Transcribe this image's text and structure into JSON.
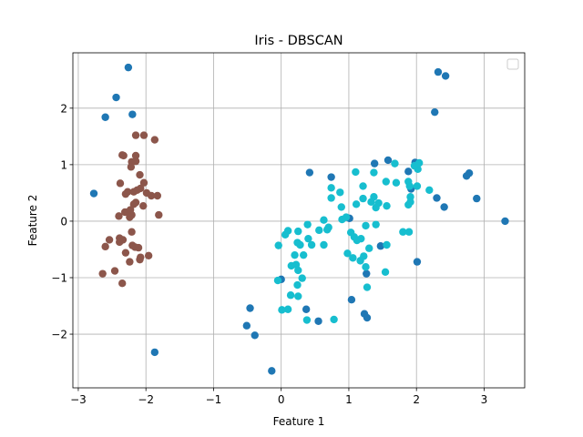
{
  "chart_data": {
    "type": "scatter",
    "title": "Iris - DBSCAN",
    "xlabel": "Feature 1",
    "ylabel": "Feature 2",
    "xlim": [
      -3.08,
      3.6
    ],
    "ylim": [
      -2.95,
      2.98
    ],
    "xticks": [
      -3,
      -2,
      -1,
      0,
      1,
      2,
      3
    ],
    "yticks": [
      -2,
      -1,
      0,
      1,
      2
    ],
    "xtick_labels": [
      "−3",
      "−2",
      "−1",
      "0",
      "1",
      "2",
      "3"
    ],
    "ytick_labels": [
      "−2",
      "−1",
      "0",
      "1",
      "2"
    ],
    "grid": true,
    "legend_placement": "top-right",
    "series": [
      {
        "color": "#1f77b4",
        "points": [
          [
            -2.26,
            2.72
          ],
          [
            -2.44,
            2.19
          ],
          [
            -2.6,
            1.84
          ],
          [
            -2.2,
            1.89
          ],
          [
            -2.77,
            0.49
          ],
          [
            -1.87,
            -2.32
          ],
          [
            2.32,
            2.64
          ],
          [
            2.43,
            2.57
          ],
          [
            2.27,
            1.93
          ],
          [
            1.58,
            1.08
          ],
          [
            1.38,
            1.02
          ],
          [
            1.88,
            0.88
          ],
          [
            0.42,
            0.86
          ],
          [
            0.74,
            0.78
          ],
          [
            1.98,
            1.04
          ],
          [
            1.92,
            0.57
          ],
          [
            2.78,
            0.85
          ],
          [
            2.74,
            0.8
          ],
          [
            2.89,
            0.4
          ],
          [
            2.3,
            0.41
          ],
          [
            2.41,
            0.25
          ],
          [
            3.31,
            0.0
          ],
          [
            1.47,
            -0.44
          ],
          [
            2.01,
            -0.72
          ],
          [
            1.26,
            -0.93
          ],
          [
            1.04,
            -1.39
          ],
          [
            1.23,
            -1.64
          ],
          [
            1.27,
            -1.71
          ],
          [
            0.37,
            -1.56
          ],
          [
            0.55,
            -1.77
          ],
          [
            -0.46,
            -1.54
          ],
          [
            -0.51,
            -1.85
          ],
          [
            -0.39,
            -2.02
          ],
          [
            -0.14,
            -2.65
          ],
          [
            0.0,
            -1.03
          ],
          [
            1.01,
            0.05
          ]
        ]
      },
      {
        "color": "#8c564b",
        "points": [
          [
            -2.15,
            1.52
          ],
          [
            -2.03,
            1.52
          ],
          [
            -1.87,
            1.44
          ],
          [
            -2.35,
            1.17
          ],
          [
            -2.33,
            1.16
          ],
          [
            -2.15,
            1.16
          ],
          [
            -2.21,
            1.05
          ],
          [
            -2.15,
            1.06
          ],
          [
            -2.22,
            0.96
          ],
          [
            -2.09,
            0.82
          ],
          [
            -2.03,
            0.68
          ],
          [
            -2.38,
            0.67
          ],
          [
            -2.08,
            0.58
          ],
          [
            -2.13,
            0.55
          ],
          [
            -2.18,
            0.52
          ],
          [
            -2.27,
            0.52
          ],
          [
            -2.3,
            0.48
          ],
          [
            -1.99,
            0.5
          ],
          [
            -1.92,
            0.45
          ],
          [
            -1.83,
            0.45
          ],
          [
            -2.15,
            0.33
          ],
          [
            -2.18,
            0.3
          ],
          [
            -2.04,
            0.27
          ],
          [
            -2.31,
            0.16
          ],
          [
            -2.23,
            0.2
          ],
          [
            -2.21,
            0.11
          ],
          [
            -1.81,
            0.11
          ],
          [
            -2.4,
            0.09
          ],
          [
            -2.24,
            0.07
          ],
          [
            -2.21,
            -0.19
          ],
          [
            -2.39,
            -0.3
          ],
          [
            -2.34,
            -0.33
          ],
          [
            -2.39,
            -0.37
          ],
          [
            -2.54,
            -0.33
          ],
          [
            -2.2,
            -0.43
          ],
          [
            -2.16,
            -0.46
          ],
          [
            -2.11,
            -0.47
          ],
          [
            -2.6,
            -0.45
          ],
          [
            -2.3,
            -0.56
          ],
          [
            -2.08,
            -0.64
          ],
          [
            -1.96,
            -0.61
          ],
          [
            -2.24,
            -0.72
          ],
          [
            -2.09,
            -0.68
          ],
          [
            -2.46,
            -0.88
          ],
          [
            -2.64,
            -0.93
          ],
          [
            -2.35,
            -1.1
          ]
        ]
      },
      {
        "color": "#17becf",
        "points": [
          [
            1.68,
            1.02
          ],
          [
            2.02,
            0.92
          ],
          [
            1.97,
            0.98
          ],
          [
            2.04,
            1.03
          ],
          [
            1.37,
            0.86
          ],
          [
            1.1,
            0.87
          ],
          [
            1.7,
            0.68
          ],
          [
            1.88,
            0.7
          ],
          [
            1.9,
            0.62
          ],
          [
            1.55,
            0.7
          ],
          [
            1.21,
            0.62
          ],
          [
            1.37,
            0.43
          ],
          [
            0.87,
            0.51
          ],
          [
            0.74,
            0.59
          ],
          [
            0.89,
            0.25
          ],
          [
            1.33,
            0.34
          ],
          [
            1.4,
            0.24
          ],
          [
            1.56,
            0.27
          ],
          [
            1.91,
            0.43
          ],
          [
            1.91,
            0.34
          ],
          [
            2.01,
            0.62
          ],
          [
            2.19,
            0.55
          ],
          [
            1.88,
            0.29
          ],
          [
            1.44,
            0.32
          ],
          [
            0.74,
            0.41
          ],
          [
            1.21,
            0.4
          ],
          [
            1.11,
            0.3
          ],
          [
            0.96,
            0.07
          ],
          [
            0.63,
            0.02
          ],
          [
            0.9,
            0.03
          ],
          [
            0.39,
            -0.06
          ],
          [
            0.7,
            -0.11
          ],
          [
            0.68,
            -0.15
          ],
          [
            0.56,
            -0.16
          ],
          [
            0.25,
            -0.18
          ],
          [
            0.1,
            -0.17
          ],
          [
            0.06,
            -0.24
          ],
          [
            0.4,
            -0.31
          ],
          [
            0.24,
            -0.38
          ],
          [
            0.28,
            -0.42
          ],
          [
            0.45,
            -0.42
          ],
          [
            0.63,
            -0.42
          ],
          [
            -0.04,
            -0.43
          ],
          [
            0.2,
            -0.6
          ],
          [
            0.33,
            -0.6
          ],
          [
            1.4,
            -0.06
          ],
          [
            1.25,
            -0.08
          ],
          [
            1.03,
            -0.2
          ],
          [
            1.18,
            -0.31
          ],
          [
            1.08,
            -0.28
          ],
          [
            1.12,
            -0.34
          ],
          [
            1.3,
            -0.48
          ],
          [
            1.56,
            -0.42
          ],
          [
            1.8,
            -0.19
          ],
          [
            1.89,
            -0.19
          ],
          [
            0.98,
            -0.57
          ],
          [
            1.06,
            -0.65
          ],
          [
            1.17,
            -0.7
          ],
          [
            1.25,
            -0.81
          ],
          [
            1.54,
            -0.9
          ],
          [
            0.15,
            -0.79
          ],
          [
            0.22,
            -0.77
          ],
          [
            0.25,
            -0.87
          ],
          [
            0.31,
            -1.01
          ],
          [
            -0.05,
            -1.05
          ],
          [
            0.24,
            -1.13
          ],
          [
            0.14,
            -1.31
          ],
          [
            0.25,
            -1.33
          ],
          [
            1.27,
            -1.17
          ],
          [
            0.01,
            -1.57
          ],
          [
            0.1,
            -1.56
          ],
          [
            0.38,
            -1.75
          ],
          [
            0.78,
            -1.74
          ],
          [
            1.22,
            -0.62
          ]
        ]
      }
    ]
  }
}
